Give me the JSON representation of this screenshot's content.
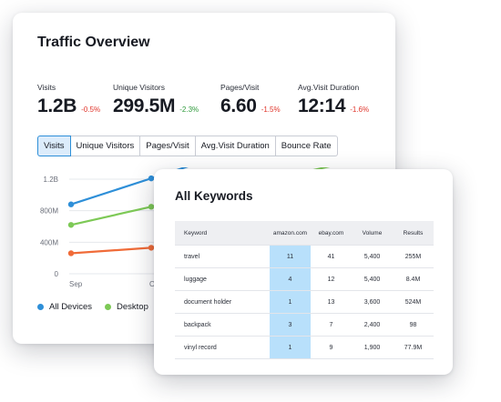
{
  "traffic": {
    "title": "Traffic Overview",
    "metrics": [
      {
        "label": "Visits",
        "value": "1.2B",
        "delta": "-0.5%",
        "trend": "negative"
      },
      {
        "label": "Unique Visitors",
        "value": "299.5M",
        "delta": "-2.3%",
        "trend": "positive"
      },
      {
        "label": "Pages/Visit",
        "value": "6.60",
        "delta": "-1.5%",
        "trend": "negative"
      },
      {
        "label": "Avg.Visit Duration",
        "value": "12:14",
        "delta": "-1.6%",
        "trend": "negative"
      }
    ],
    "tabs": [
      {
        "label": "Visits",
        "active": true
      },
      {
        "label": "Unique Visitors",
        "active": false
      },
      {
        "label": "Pages/Visit",
        "active": false
      },
      {
        "label": "Avg.Visit Duration",
        "active": false
      },
      {
        "label": "Bounce Rate",
        "active": false
      }
    ],
    "chart": {
      "y_ticks": [
        "1.2B",
        "800M",
        "400M",
        "0"
      ],
      "x_ticks": [
        "Sep",
        "Oct"
      ],
      "series": [
        {
          "name": "All Devices",
          "color": "#2e8fd8",
          "values": [
            880000000,
            1210000000
          ]
        },
        {
          "name": "Desktop",
          "color": "#7dc956",
          "values": [
            620000000,
            850000000
          ]
        },
        {
          "name": "",
          "color": "#f06b38",
          "values": [
            260000000,
            330000000
          ]
        }
      ],
      "ylim": [
        0,
        1200000000
      ]
    },
    "legend": [
      {
        "label": "All Devices",
        "color": "#2e8fd8"
      },
      {
        "label": "Desktop",
        "color": "#7dc956"
      }
    ]
  },
  "keywords": {
    "title": "All Keywords",
    "columns": [
      "Keyword",
      "amazon.com",
      "ebay.com",
      "Volume",
      "Results"
    ],
    "rows": [
      {
        "keyword": "travel",
        "amazon": "11",
        "ebay": "41",
        "volume": "5,400",
        "results": "255M"
      },
      {
        "keyword": "luggage",
        "amazon": "4",
        "ebay": "12",
        "volume": "5,400",
        "results": "8.4M"
      },
      {
        "keyword": "document holder",
        "amazon": "1",
        "ebay": "13",
        "volume": "3,600",
        "results": "524M"
      },
      {
        "keyword": "backpack",
        "amazon": "3",
        "ebay": "7",
        "volume": "2,400",
        "results": "98"
      },
      {
        "keyword": "vinyl record",
        "amazon": "1",
        "ebay": "9",
        "volume": "1,900",
        "results": "77.9M"
      }
    ]
  }
}
